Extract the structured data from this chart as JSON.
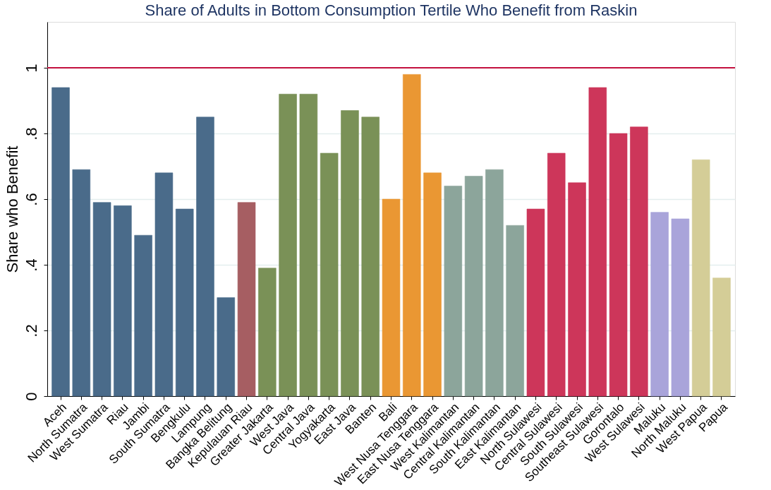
{
  "chart_data": {
    "type": "bar",
    "title": "Share of Adults in Bottom Consumption Tertile Who Benefit from Raskin",
    "ylabel": "Share who Benefit",
    "categories": [
      "Aceh",
      "North Sumatra",
      "West Sumatra",
      "Riau",
      "Jambi",
      "South Sumatra",
      "Bengkulu",
      "Lampung",
      "Bangka Belitung",
      "Kepulauan Riau",
      "Greater Jakarta",
      "West Java",
      "Central Java",
      "Yogyakarta",
      "East Java",
      "Banten",
      "Bali",
      "West Nusa Tenggara",
      "East Nusa Tenggara",
      "West Kalimantan",
      "Central Kalimantan",
      "South Kalimantan",
      "East Kalimantan",
      "North Sulawesi",
      "Central Sulawesi",
      "South Sulawesi",
      "Southeast Sulawesi",
      "Gorontalo",
      "West Sulawesi",
      "Maluku",
      "North Maluku",
      "West Papua",
      "Papua"
    ],
    "values": [
      0.94,
      0.69,
      0.59,
      0.58,
      0.49,
      0.68,
      0.57,
      0.85,
      0.3,
      0.59,
      0.39,
      0.92,
      0.92,
      0.74,
      0.87,
      0.85,
      0.6,
      0.98,
      0.68,
      0.64,
      0.67,
      0.69,
      0.52,
      0.57,
      0.74,
      0.65,
      0.94,
      0.8,
      0.82,
      0.56,
      0.54,
      0.72,
      0.36
    ],
    "colors": [
      "#4a6b8a",
      "#4a6b8a",
      "#4a6b8a",
      "#4a6b8a",
      "#4a6b8a",
      "#4a6b8a",
      "#4a6b8a",
      "#4a6b8a",
      "#4a6b8a",
      "#a65e62",
      "#7a9157",
      "#7a9157",
      "#7a9157",
      "#7a9157",
      "#7a9157",
      "#7a9157",
      "#ea9733",
      "#ea9733",
      "#ea9733",
      "#8ca59b",
      "#8ca59b",
      "#8ca59b",
      "#8ca59b",
      "#cd365a",
      "#cd365a",
      "#cd365a",
      "#cd365a",
      "#cd365a",
      "#cd365a",
      "#a9a4da",
      "#a9a4da",
      "#d4cd97",
      "#d4cd97"
    ],
    "ylim": [
      0,
      1.14
    ],
    "yticks": [
      0,
      {
        "value": 0.2,
        "label": ".2"
      },
      {
        "value": 0.4,
        "label": ".4"
      },
      {
        "value": 0.6,
        "label": ".6"
      },
      {
        "value": 0.8,
        "label": ".8"
      },
      1
    ],
    "ref_lines": [
      {
        "axis": "y",
        "value": 1,
        "color": "#c4123f"
      }
    ],
    "grid": "y"
  }
}
